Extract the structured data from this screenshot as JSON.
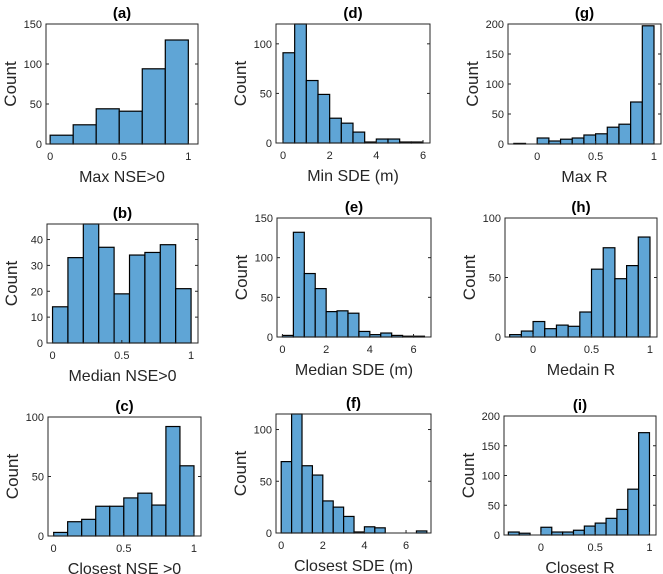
{
  "chart_data": [
    {
      "id": "a",
      "type": "bar",
      "title": "(a)",
      "xlabel": "Max NSE>0",
      "ylabel": "Count",
      "bin_edges": [
        0,
        0.1667,
        0.3333,
        0.5,
        0.6667,
        0.8333,
        1.0
      ],
      "values": [
        11,
        24,
        44,
        41,
        94,
        130
      ],
      "xlim": [
        -0.03,
        1.07
      ],
      "ylim": [
        0,
        150
      ],
      "xticks": [
        0,
        0.5,
        1
      ],
      "xtick_labels": [
        "0",
        "0.5",
        "1"
      ],
      "yticks": [
        0,
        50,
        100,
        150
      ],
      "ytick_labels": [
        "0",
        "50",
        "100",
        "150"
      ]
    },
    {
      "id": "b",
      "type": "bar",
      "title": "(b)",
      "xlabel": "Median NSE>0",
      "ylabel": "Count",
      "bin_edges": [
        0,
        0.1111,
        0.2222,
        0.3333,
        0.4444,
        0.5556,
        0.6667,
        0.7778,
        0.8889,
        1.0
      ],
      "values": [
        14,
        33,
        46,
        37,
        19,
        34,
        35,
        38,
        21
      ],
      "xlim": [
        -0.04,
        1.05
      ],
      "ylim": [
        0,
        46
      ],
      "xticks": [
        0,
        0.5,
        1
      ],
      "xtick_labels": [
        "0",
        "0.5",
        "1"
      ],
      "yticks": [
        0,
        10,
        20,
        30,
        40
      ],
      "ytick_labels": [
        "0",
        "10",
        "20",
        "30",
        "40"
      ]
    },
    {
      "id": "c",
      "type": "bar",
      "title": "(c)",
      "xlabel": "Closest NSE >0",
      "ylabel": "Count",
      "bin_edges": [
        0,
        0.1,
        0.2,
        0.3,
        0.4,
        0.5,
        0.6,
        0.7,
        0.8,
        0.9,
        1.0
      ],
      "values": [
        3,
        12,
        14,
        25,
        25,
        32,
        36,
        26,
        92,
        59
      ],
      "xlim": [
        -0.04,
        1.05
      ],
      "ylim": [
        0,
        100
      ],
      "xticks": [
        0,
        0.5,
        1
      ],
      "xtick_labels": [
        "0",
        "0.5",
        "1"
      ],
      "yticks": [
        0,
        50,
        100
      ],
      "ytick_labels": [
        "0",
        "50",
        "100"
      ]
    },
    {
      "id": "d",
      "type": "bar",
      "title": "(d)",
      "xlabel": "Min SDE (m)",
      "ylabel": "Count",
      "bin_edges": [
        0,
        0.5,
        1,
        1.5,
        2,
        2.5,
        3,
        3.5,
        4,
        4.5,
        5,
        5.5,
        6
      ],
      "values": [
        91,
        120,
        63,
        49,
        25,
        20,
        11,
        1,
        4,
        4,
        1,
        1
      ],
      "xlim": [
        -0.3,
        6.3
      ],
      "ylim": [
        0,
        120
      ],
      "xticks": [
        0,
        2,
        4,
        6
      ],
      "xtick_labels": [
        "0",
        "2",
        "4",
        "6"
      ],
      "yticks": [
        0,
        50,
        100
      ],
      "ytick_labels": [
        "0",
        "50",
        "100"
      ]
    },
    {
      "id": "e",
      "type": "bar",
      "title": "(e)",
      "xlabel": "Median SDE (m)",
      "ylabel": "Count",
      "bin_edges": [
        0,
        0.5,
        1,
        1.5,
        2,
        2.5,
        3,
        3.5,
        4,
        4.5,
        5,
        5.5,
        6,
        6.5
      ],
      "values": [
        2,
        132,
        80,
        61,
        32,
        33,
        30,
        7,
        3,
        5,
        2,
        1,
        1
      ],
      "xlim": [
        -0.25,
        6.8
      ],
      "ylim": [
        0,
        150
      ],
      "xticks": [
        0,
        2,
        4,
        6
      ],
      "xtick_labels": [
        "0",
        "2",
        "4",
        "6"
      ],
      "yticks": [
        0,
        50,
        100,
        150
      ],
      "ytick_labels": [
        "0",
        "50",
        "100",
        "150"
      ]
    },
    {
      "id": "f",
      "type": "bar",
      "title": "(f)",
      "xlabel": "Closest SDE (m)",
      "ylabel": "Count",
      "bin_edges": [
        0,
        0.5,
        1,
        1.5,
        2,
        2.5,
        3,
        3.5,
        4,
        4.5,
        5,
        5.5,
        6,
        6.5,
        7
      ],
      "values": [
        69,
        115,
        65,
        56,
        31,
        25,
        16,
        1,
        6,
        5,
        0,
        0,
        0,
        2
      ],
      "xlim": [
        -0.25,
        7.2
      ],
      "ylim": [
        0,
        115
      ],
      "xticks": [
        0,
        2,
        4,
        6
      ],
      "xtick_labels": [
        "0",
        "2",
        "4",
        "6"
      ],
      "yticks": [
        0,
        50,
        100
      ],
      "ytick_labels": [
        "0",
        "50",
        "100"
      ]
    },
    {
      "id": "g",
      "type": "bar",
      "title": "(g)",
      "xlabel": "Max R",
      "ylabel": "Count",
      "bin_edges": [
        -0.2,
        -0.1,
        0,
        0.1,
        0.2,
        0.3,
        0.4,
        0.5,
        0.6,
        0.7,
        0.8,
        0.9,
        1.0
      ],
      "values": [
        1,
        0,
        10,
        5,
        8,
        10,
        15,
        17,
        28,
        33,
        70,
        197
      ],
      "xlim": [
        -0.25,
        1.06
      ],
      "ylim": [
        0,
        200
      ],
      "xticks": [
        0,
        0.5,
        1
      ],
      "xtick_labels": [
        "0",
        "0.5",
        "1"
      ],
      "yticks": [
        0,
        50,
        100,
        150,
        200
      ],
      "ytick_labels": [
        "0",
        "50",
        "100",
        "150",
        "200"
      ]
    },
    {
      "id": "h",
      "type": "bar",
      "title": "(h)",
      "xlabel": "Medain R",
      "ylabel": "Count",
      "bin_edges": [
        -0.2,
        -0.1,
        0,
        0.1,
        0.2,
        0.3,
        0.4,
        0.5,
        0.6,
        0.7,
        0.8,
        0.9,
        1.0
      ],
      "values": [
        2,
        5,
        13,
        7,
        10,
        9,
        21,
        57,
        75,
        49,
        60,
        84
      ],
      "xlim": [
        -0.24,
        1.06
      ],
      "ylim": [
        0,
        100
      ],
      "xticks": [
        0,
        0.5,
        1
      ],
      "xtick_labels": [
        "0",
        "0.5",
        "1"
      ],
      "yticks": [
        0,
        50,
        100
      ],
      "ytick_labels": [
        "0",
        "50",
        "100"
      ]
    },
    {
      "id": "i",
      "type": "bar",
      "title": "(i)",
      "xlabel": "Closest R",
      "ylabel": "Count",
      "bin_edges": [
        -0.3,
        -0.2,
        -0.1,
        0,
        0.1,
        0.2,
        0.3,
        0.4,
        0.5,
        0.6,
        0.7,
        0.8,
        0.9,
        1.0
      ],
      "values": [
        5,
        3,
        0,
        13,
        5,
        5,
        8,
        15,
        20,
        28,
        43,
        77,
        172
      ],
      "xlim": [
        -0.34,
        1.06
      ],
      "ylim": [
        0,
        200
      ],
      "xticks": [
        0,
        0.5,
        1
      ],
      "xtick_labels": [
        "0",
        "0.5",
        "1"
      ],
      "yticks": [
        0,
        50,
        100,
        150,
        200
      ],
      "ytick_labels": [
        "0",
        "50",
        "100",
        "150",
        "200"
      ]
    }
  ]
}
